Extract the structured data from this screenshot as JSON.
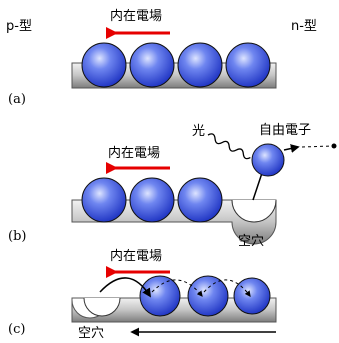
{
  "header": {
    "p_type": "p-型",
    "n_type": "n-型"
  },
  "panels": [
    {
      "id": "a",
      "label": "(a)",
      "field_label": "内在電場"
    },
    {
      "id": "b",
      "label": "(b)",
      "field_label": "内在電場",
      "light_label": "光",
      "free_electron_label": "自由電子",
      "hole_label": "空穴"
    },
    {
      "id": "c",
      "label": "(c)",
      "field_label": "内在電場",
      "hole_label": "空穴"
    }
  ],
  "colors": {
    "field_arrow": "#e60000",
    "electron_light": "#c8d4ff",
    "electron_dark": "#1a2fc0",
    "substrate_light": "#e8e8e8",
    "substrate_dark": "#8a8a8a"
  }
}
